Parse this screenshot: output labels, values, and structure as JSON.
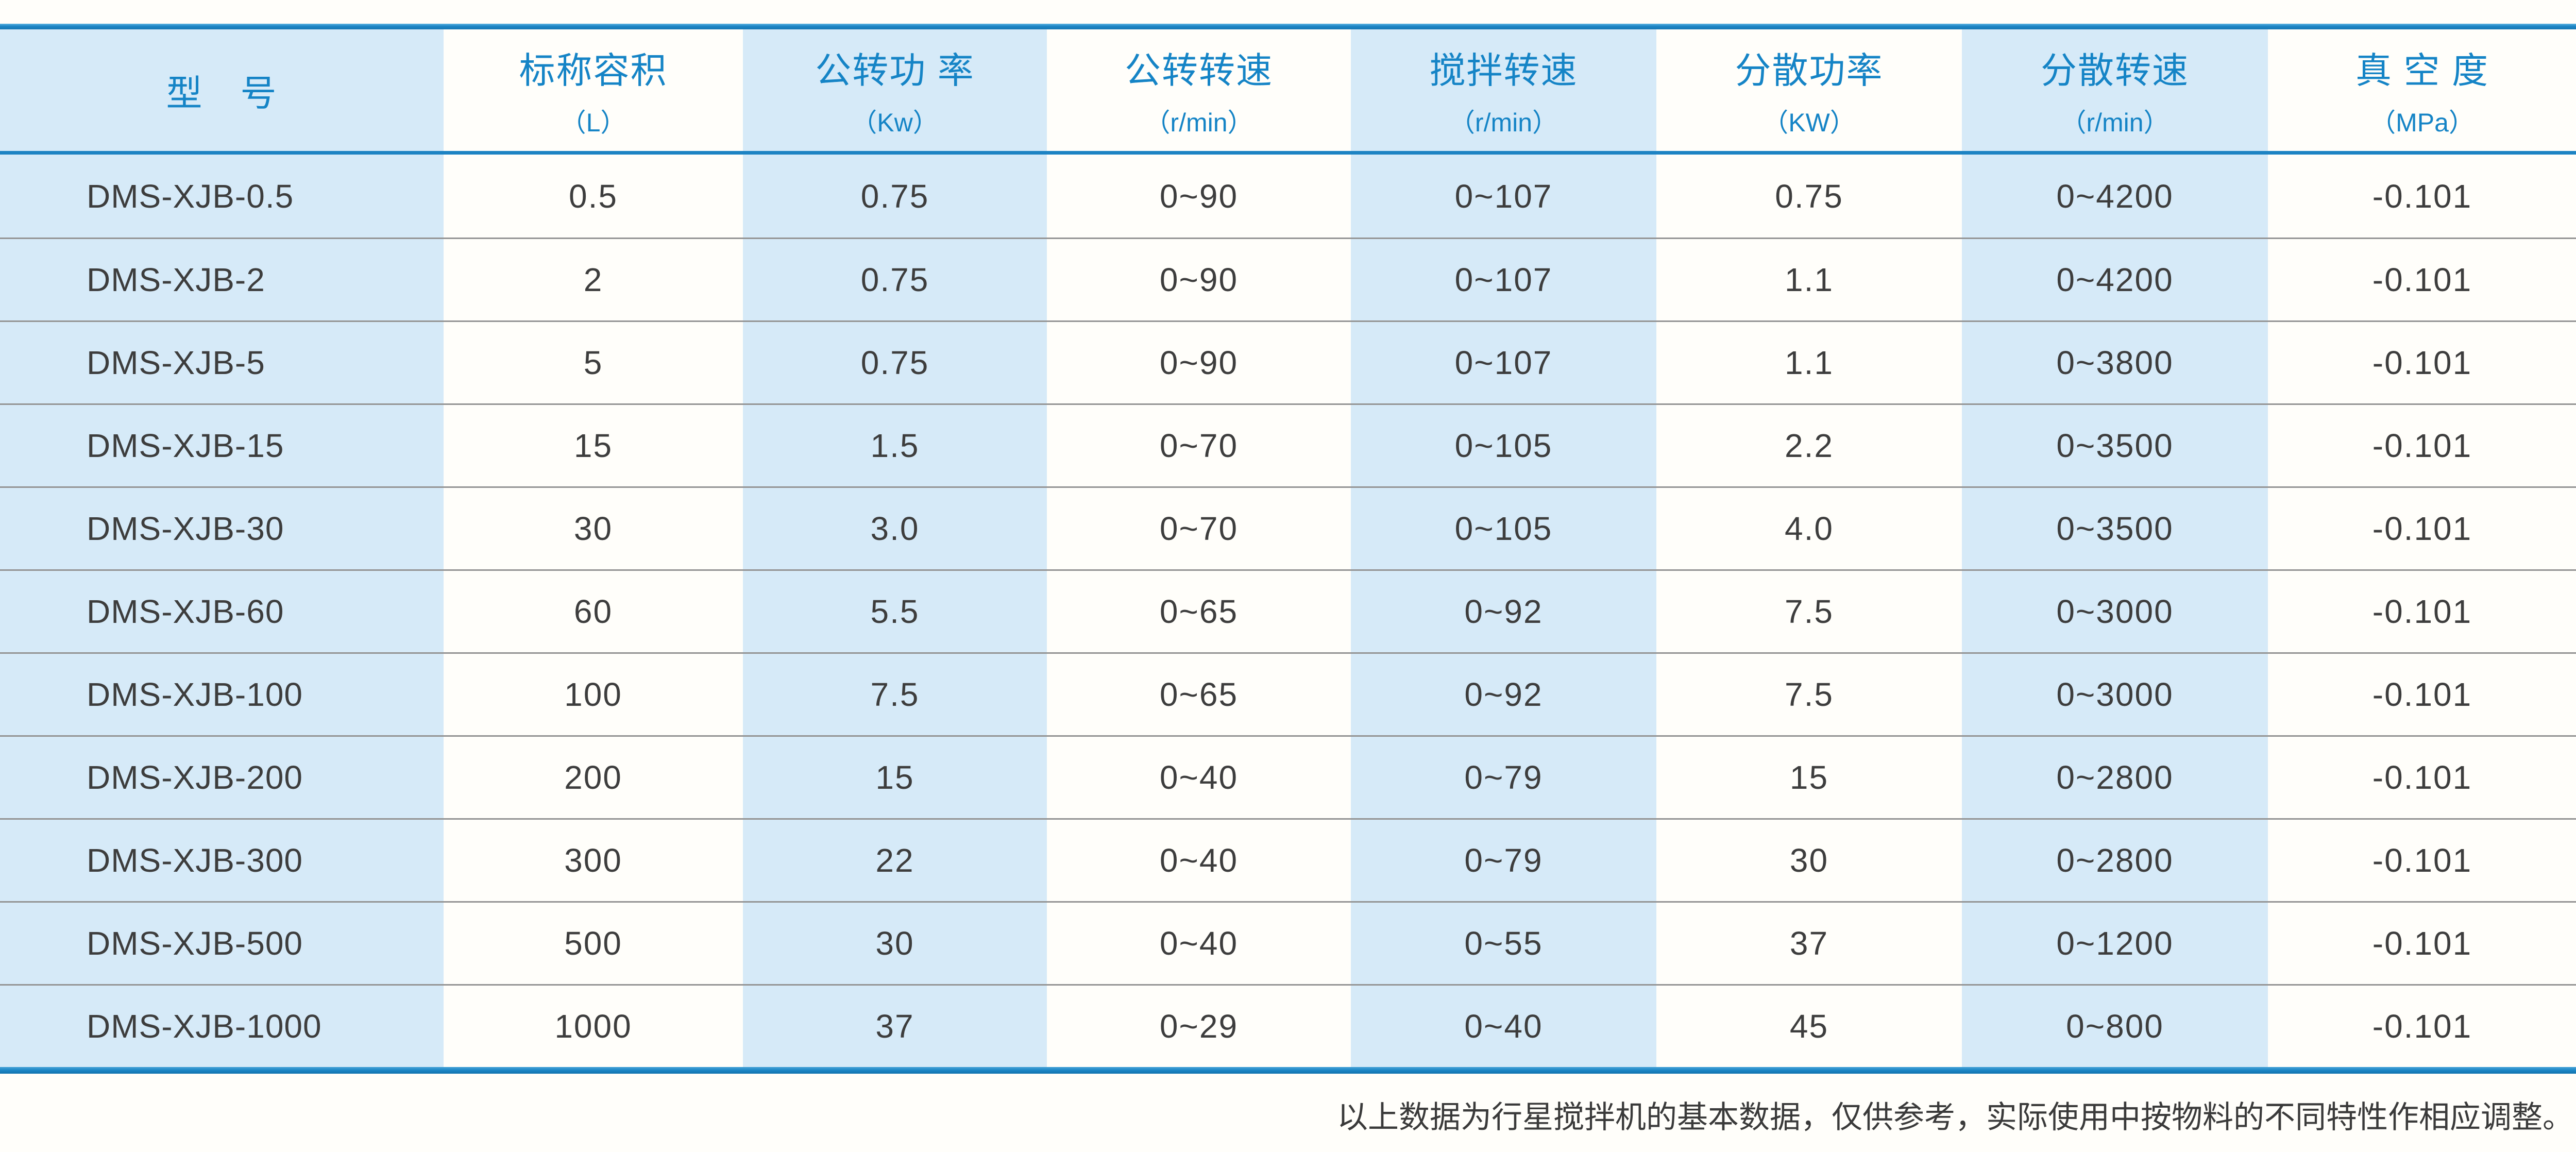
{
  "table": {
    "columns": [
      {
        "title": "型　号",
        "unit": ""
      },
      {
        "title": "标称容积",
        "unit": "（L）"
      },
      {
        "title": "公转功 率",
        "unit": "（Kw）"
      },
      {
        "title": "公转转速",
        "unit": "（r/min）"
      },
      {
        "title": "搅拌转速",
        "unit": "（r/min）"
      },
      {
        "title": "分散功率",
        "unit": "（KW）"
      },
      {
        "title": "分散转速",
        "unit": "（r/min）"
      },
      {
        "title": "真 空 度",
        "unit": "（MPa）"
      }
    ],
    "rows": [
      [
        "DMS-XJB-0.5",
        "0.5",
        "0.75",
        "0~90",
        "0~107",
        "0.75",
        "0~4200",
        "-0.101"
      ],
      [
        "DMS-XJB-2",
        "2",
        "0.75",
        "0~90",
        "0~107",
        "1.1",
        "0~4200",
        "-0.101"
      ],
      [
        "DMS-XJB-5",
        "5",
        "0.75",
        "0~90",
        "0~107",
        "1.1",
        "0~3800",
        "-0.101"
      ],
      [
        "DMS-XJB-15",
        "15",
        "1.5",
        "0~70",
        "0~105",
        "2.2",
        "0~3500",
        "-0.101"
      ],
      [
        "DMS-XJB-30",
        "30",
        "3.0",
        "0~70",
        "0~105",
        "4.0",
        "0~3500",
        "-0.101"
      ],
      [
        "DMS-XJB-60",
        "60",
        "5.5",
        "0~65",
        "0~92",
        "7.5",
        "0~3000",
        "-0.101"
      ],
      [
        "DMS-XJB-100",
        "100",
        "7.5",
        "0~65",
        "0~92",
        "7.5",
        "0~3000",
        "-0.101"
      ],
      [
        "DMS-XJB-200",
        "200",
        "15",
        "0~40",
        "0~79",
        "15",
        "0~2800",
        "-0.101"
      ],
      [
        "DMS-XJB-300",
        "300",
        "22",
        "0~40",
        "0~79",
        "30",
        "0~2800",
        "-0.101"
      ],
      [
        "DMS-XJB-500",
        "500",
        "30",
        "0~40",
        "0~55",
        "37",
        "0~1200",
        "-0.101"
      ],
      [
        "DMS-XJB-1000",
        "1000",
        "37",
        "0~29",
        "0~40",
        "45",
        "0~800",
        "-0.101"
      ]
    ]
  },
  "footer": {
    "note": "以上数据为行星搅拌机的基本数据，仅供参考，实际使用中按物料的不同特性作相应调整。"
  },
  "colors": {
    "accent_blue_bar": "#1c85c5",
    "stripe_light_blue": "#d6eaf8",
    "header_text_blue": "#1584c6",
    "body_text": "#3d3d3d",
    "row_separator_gray": "#949494",
    "page_background": "#fffefa"
  }
}
